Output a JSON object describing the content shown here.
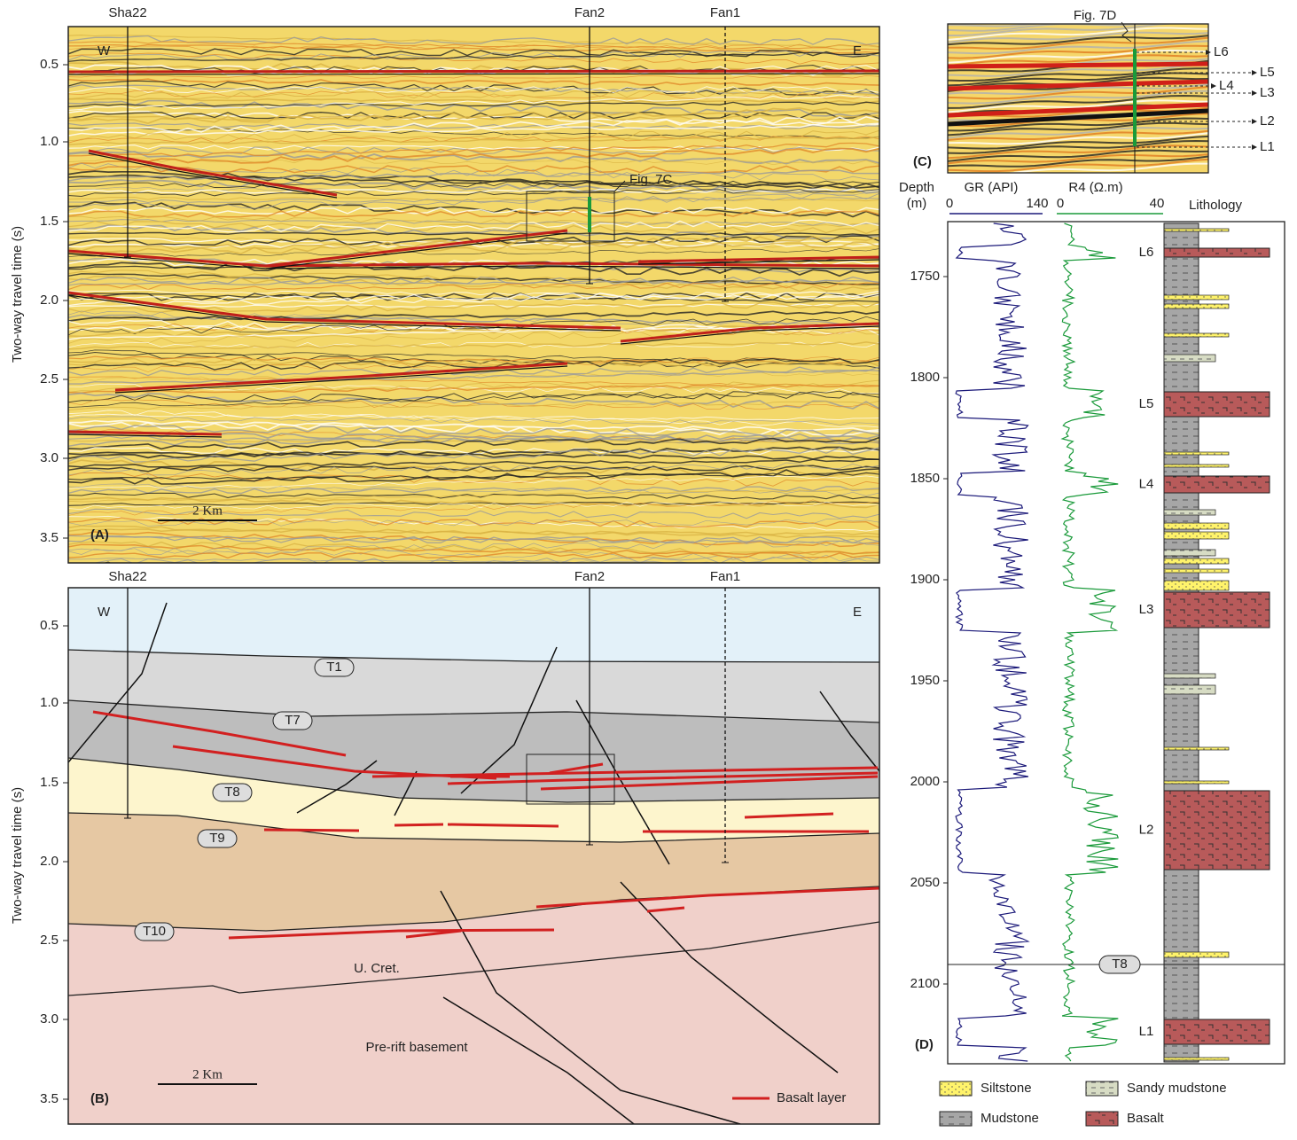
{
  "panel_a": {
    "label": "(A)",
    "wells": [
      "Sha22",
      "Fan2",
      "Fan1"
    ],
    "west": "W",
    "east": "E",
    "y_axis_title": "Two-way travel time (s)",
    "y_ticks": [
      "0.5",
      "1.0",
      "1.5",
      "2.0",
      "2.5",
      "3.0",
      "3.5"
    ],
    "scale_bar": "2 Km",
    "callout": "Fig. 7C"
  },
  "panel_b": {
    "label": "(B)",
    "wells": [
      "Sha22",
      "Fan2",
      "Fan1"
    ],
    "west": "W",
    "east": "E",
    "y_axis_title": "Two-way travel time (s)",
    "y_ticks": [
      "0.5",
      "1.0",
      "1.5",
      "2.0",
      "2.5",
      "3.0",
      "3.5"
    ],
    "scale_bar": "2 Km",
    "horizons": [
      "T1",
      "T7",
      "T8",
      "T9",
      "T10"
    ],
    "units": [
      "U. Cret.",
      "Pre-rift basement"
    ],
    "legend": "Basalt layer"
  },
  "panel_c": {
    "label": "(C)",
    "callout": "Fig. 7D",
    "layers": [
      "L6",
      "L5",
      "L4",
      "L3",
      "L2",
      "L1"
    ]
  },
  "panel_d": {
    "label": "(D)",
    "depth_title": "Depth",
    "depth_unit": "(m)",
    "gr_title": "GR (API)",
    "gr_range": [
      "0",
      "140"
    ],
    "r4_title": "R4 (Ω.m)",
    "r4_range": [
      "0",
      "40"
    ],
    "lithology_title": "Lithology",
    "depth_ticks": [
      "1750",
      "1800",
      "1850",
      "1900",
      "1950",
      "2000",
      "2050",
      "2100"
    ],
    "layers": [
      "L6",
      "L5",
      "L4",
      "L3",
      "L2",
      "L1"
    ],
    "horizon": "T8",
    "legend": [
      "Siltstone",
      "Sandy mudstone",
      "Mudstone",
      "Basalt"
    ]
  }
}
